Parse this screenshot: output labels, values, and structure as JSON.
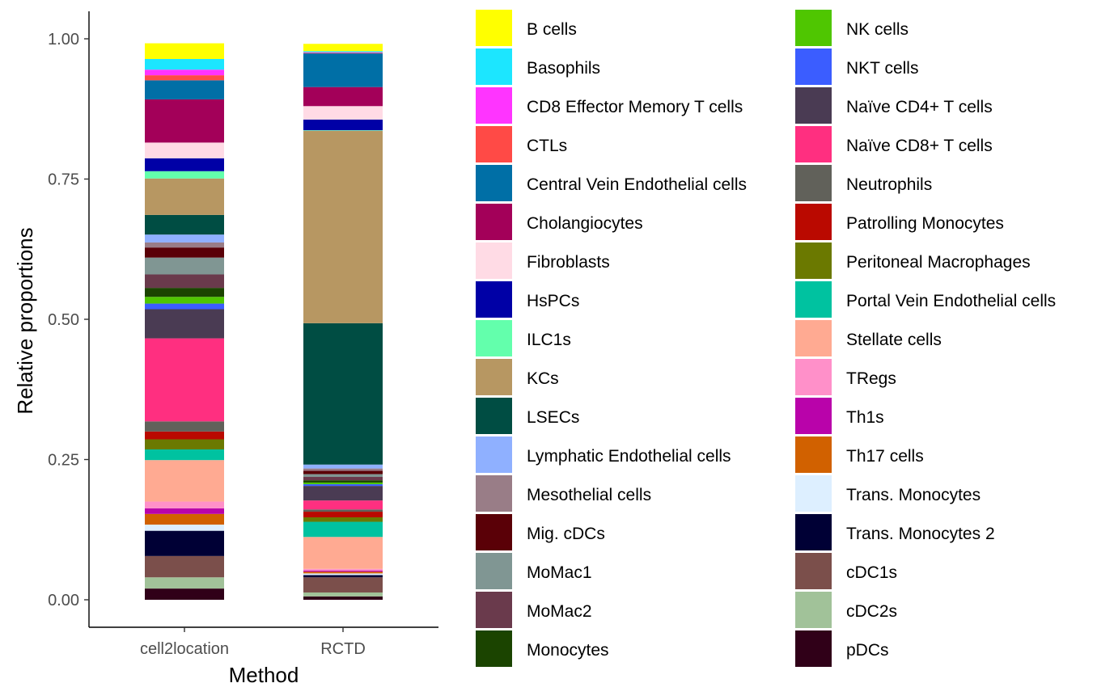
{
  "chart_data": {
    "type": "bar",
    "stacked": true,
    "xlabel": "Method",
    "ylabel": "Relative proportions",
    "ylim": [
      0,
      1
    ],
    "yticks": [
      "0.00",
      "0.25",
      "0.50",
      "0.75",
      "1.00"
    ],
    "categories": [
      "cell2location",
      "RCTD"
    ],
    "grid": false,
    "legend_position": "right",
    "series": [
      {
        "name": "B cells",
        "color": "#FFFF00",
        "values": [
          0.028,
          0.013
        ]
      },
      {
        "name": "Basophils",
        "color": "#1CE6FF",
        "values": [
          0.019,
          0.002
        ]
      },
      {
        "name": "CD8 Effector Memory T cells",
        "color": "#FF34FF",
        "values": [
          0.01,
          0.001
        ]
      },
      {
        "name": "CTLs",
        "color": "#FF4A46",
        "values": [
          0.009,
          0.001
        ]
      },
      {
        "name": "Central Vein Endothelial cells",
        "color": "#006FA6",
        "values": [
          0.034,
          0.06
        ]
      },
      {
        "name": "Cholangiocytes",
        "color": "#A30059",
        "values": [
          0.077,
          0.034
        ]
      },
      {
        "name": "Fibroblasts",
        "color": "#FFDBE5",
        "values": [
          0.028,
          0.024
        ]
      },
      {
        "name": "HsPCs",
        "color": "#0000A6",
        "values": [
          0.023,
          0.019
        ]
      },
      {
        "name": "ILC1s",
        "color": "#63FFAC",
        "values": [
          0.013,
          0.001
        ]
      },
      {
        "name": "KCs",
        "color": "#B79762",
        "values": [
          0.065,
          0.343
        ]
      },
      {
        "name": "LSECs",
        "color": "#004D43",
        "values": [
          0.035,
          0.252
        ]
      },
      {
        "name": "Lymphatic Endothelial cells",
        "color": "#8FB0FF",
        "values": [
          0.014,
          0.007
        ]
      },
      {
        "name": "Mesothelial cells",
        "color": "#997D87",
        "values": [
          0.009,
          0.004
        ]
      },
      {
        "name": "Mig. cDCs",
        "color": "#5A0007",
        "values": [
          0.018,
          0.006
        ]
      },
      {
        "name": "MoMac1",
        "color": "#809693",
        "values": [
          0.03,
          0.005
        ]
      },
      {
        "name": "MoMac2",
        "color": "#6A3A4C",
        "values": [
          0.024,
          0.006
        ]
      },
      {
        "name": "Monocytes",
        "color": "#1B4400",
        "values": [
          0.016,
          0.004
        ]
      },
      {
        "name": "NK cells",
        "color": "#4FC601",
        "values": [
          0.012,
          0.003
        ]
      },
      {
        "name": "NKT cells",
        "color": "#3B5DFF",
        "values": [
          0.01,
          0.003
        ]
      },
      {
        "name": "Naïve CD4+ T cells",
        "color": "#4A3B53",
        "values": [
          0.052,
          0.026
        ]
      },
      {
        "name": "Naïve CD8+ T cells",
        "color": "#FF2F80",
        "values": [
          0.148,
          0.016
        ]
      },
      {
        "name": "Neutrophils",
        "color": "#61615A",
        "values": [
          0.018,
          0.004
        ]
      },
      {
        "name": "Patrolling Monocytes",
        "color": "#BA0900",
        "values": [
          0.014,
          0.01
        ]
      },
      {
        "name": "Peritoneal Macrophages",
        "color": "#6B7900",
        "values": [
          0.018,
          0.008
        ]
      },
      {
        "name": "Portal Vein Endothelial cells",
        "color": "#00C2A0",
        "values": [
          0.019,
          0.027
        ]
      },
      {
        "name": "Stellate cells",
        "color": "#FFAA92",
        "values": [
          0.074,
          0.057
        ]
      },
      {
        "name": "TRegs",
        "color": "#FF90C9",
        "values": [
          0.012,
          0.003
        ]
      },
      {
        "name": "Th1s",
        "color": "#B903AA",
        "values": [
          0.01,
          0.002
        ]
      },
      {
        "name": "Th17 cells",
        "color": "#D16100",
        "values": [
          0.019,
          0.003
        ]
      },
      {
        "name": "Trans. Monocytes",
        "color": "#DDEFFF",
        "values": [
          0.011,
          0.003
        ]
      },
      {
        "name": "Trans. Monocytes 2",
        "color": "#000035",
        "values": [
          0.045,
          0.004
        ]
      },
      {
        "name": "cDC1s",
        "color": "#7B4F4B",
        "values": [
          0.038,
          0.027
        ]
      },
      {
        "name": "cDC2s",
        "color": "#A1C299",
        "values": [
          0.02,
          0.007
        ]
      },
      {
        "name": "pDCs",
        "color": "#300018",
        "values": [
          0.02,
          0.006
        ]
      }
    ]
  }
}
